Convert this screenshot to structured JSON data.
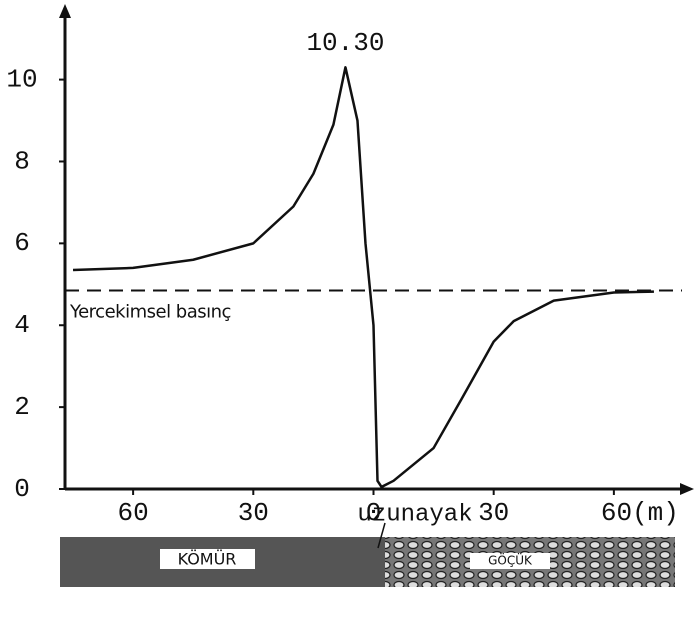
{
  "chart_data": {
    "type": "line",
    "x": [
      -75,
      -60,
      -45,
      -30,
      -20,
      -15,
      -10,
      -7,
      -4,
      -2,
      0,
      1,
      2,
      5,
      10,
      15,
      22,
      30,
      35,
      45,
      60,
      70
    ],
    "series": [
      {
        "color": "#111111",
        "values": [
          5.35,
          5.4,
          5.6,
          6.0,
          6.9,
          7.7,
          8.9,
          10.3,
          9.0,
          6.0,
          4.0,
          0.2,
          0.05,
          0.2,
          0.6,
          1.0,
          2.2,
          3.6,
          4.1,
          4.6,
          4.8,
          4.82
        ],
        "value_labels": [
          null,
          null,
          null,
          null,
          null,
          null,
          null,
          "10.30",
          null,
          null,
          null,
          null,
          null,
          null,
          null,
          null,
          null,
          null,
          null,
          null,
          null,
          null
        ]
      }
    ],
    "xlim": [
      -77,
      79
    ],
    "ylim": [
      0,
      11.7
    ],
    "xticks": [
      {
        "value": -60,
        "label": "60"
      },
      {
        "value": -30,
        "label": "30"
      },
      0,
      30,
      {
        "value": 60,
        "label": "60(m)"
      }
    ],
    "yticks": [
      0,
      2,
      4,
      6,
      8,
      10
    ],
    "reference_line": {
      "value": 4.85,
      "label": "Yercekimsel basınç"
    },
    "section": {
      "marker_label": "uzunayak",
      "left_label": "KÖMÜR",
      "right_label": "GÖÇÜK"
    }
  }
}
